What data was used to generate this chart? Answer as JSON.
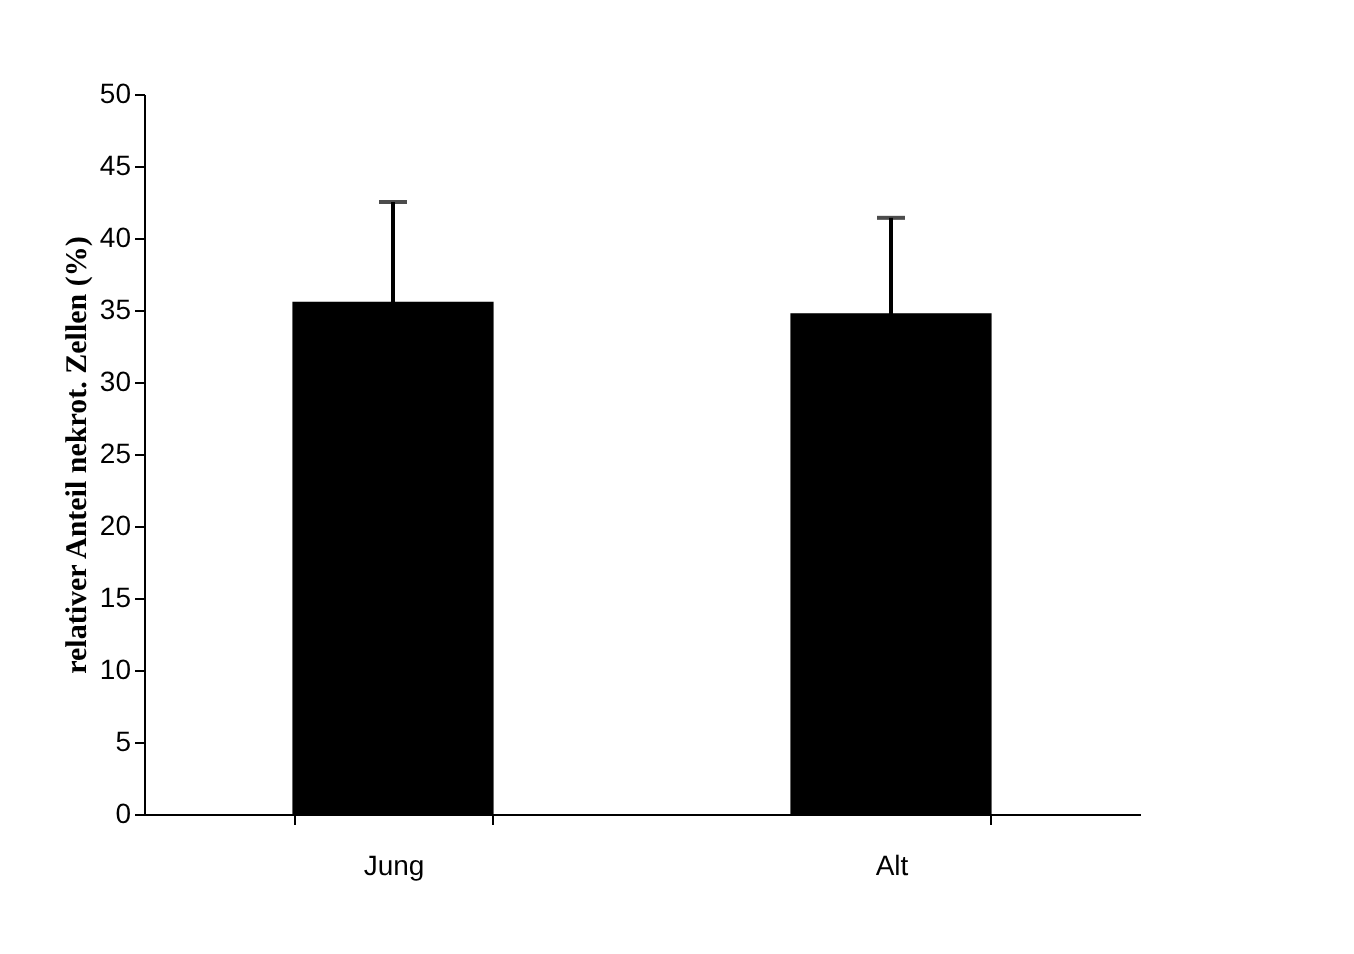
{
  "chart_data": {
    "type": "bar",
    "ylabel": "relativer Anteil nekrot. Zellen (%)",
    "categories": [
      "Jung",
      "Alt"
    ],
    "values": [
      35.5,
      34.7
    ],
    "errors": [
      [
        35.5,
        42.5
      ],
      [
        34.7,
        41.4
      ]
    ],
    "color": "#000000",
    "ylim": [
      0,
      50
    ],
    "yticks": [
      0,
      5,
      10,
      15,
      20,
      25,
      30,
      35,
      40,
      45,
      50
    ],
    "grid": false
  }
}
